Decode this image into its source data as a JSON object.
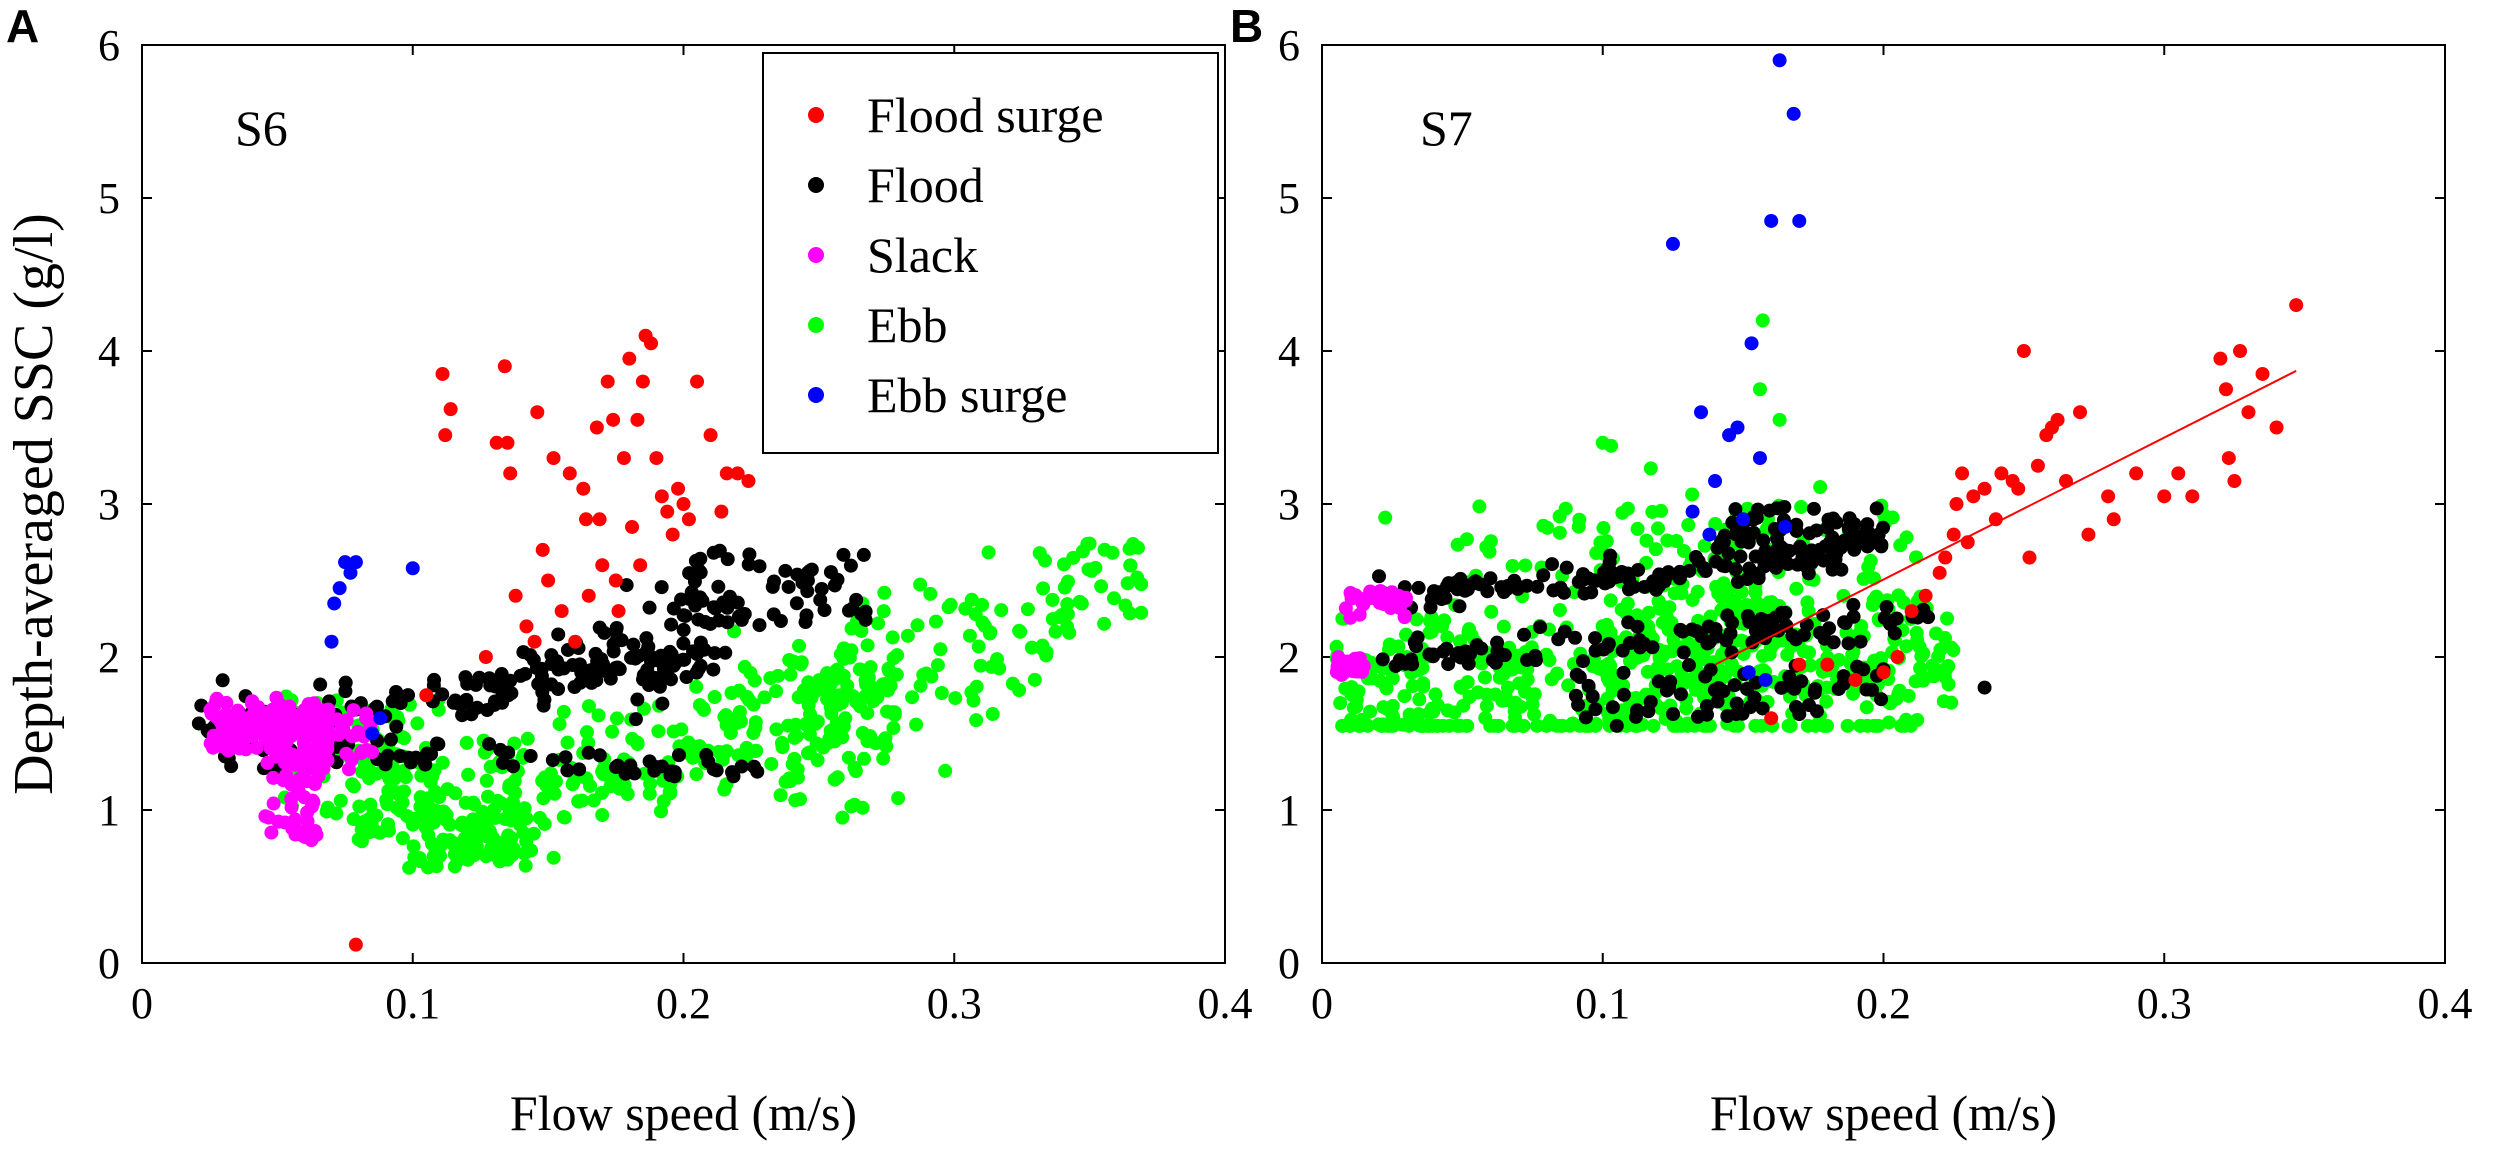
{
  "panel_letters": [
    "A",
    "B"
  ],
  "ylabel": "Depth-averaged SSC (g/l)",
  "xlabel": "Flow speed (m/s)",
  "legend": [
    {
      "label": "Flood surge",
      "color": "#ff0000"
    },
    {
      "label": "Flood",
      "color": "#000000"
    },
    {
      "label": "Slack",
      "color": "#ff00ff"
    },
    {
      "label": "Ebb",
      "color": "#00ff00"
    },
    {
      "label": "Ebb surge",
      "color": "#0000ff"
    }
  ],
  "chart_data": [
    {
      "type": "scatter",
      "panel": "A",
      "station": "S6",
      "xlabel": "Flow speed (m/s)",
      "ylabel": "Depth-averaged SSC (g/l)",
      "xlim": [
        0,
        0.4
      ],
      "ylim": [
        0,
        6
      ],
      "xticks": [
        "0",
        "0.1",
        "0.2",
        "0.3",
        "0.4"
      ],
      "yticks": [
        "0",
        "1",
        "2",
        "3",
        "4",
        "5",
        "6"
      ],
      "legend_position": "top-right",
      "series": [
        {
          "name": "Flood surge",
          "color": "#ff0000",
          "points": [
            [
              0.079,
              0.12
            ],
            [
              0.105,
              1.75
            ],
            [
              0.111,
              3.85
            ],
            [
              0.112,
              3.45
            ],
            [
              0.114,
              3.62
            ],
            [
              0.127,
              2.0
            ],
            [
              0.131,
              3.4
            ],
            [
              0.134,
              3.9
            ],
            [
              0.135,
              3.4
            ],
            [
              0.136,
              3.2
            ],
            [
              0.138,
              2.4
            ],
            [
              0.142,
              2.2
            ],
            [
              0.145,
              2.1
            ],
            [
              0.146,
              3.6
            ],
            [
              0.148,
              2.7
            ],
            [
              0.15,
              2.5
            ],
            [
              0.152,
              3.3
            ],
            [
              0.155,
              2.3
            ],
            [
              0.158,
              3.2
            ],
            [
              0.16,
              2.1
            ],
            [
              0.163,
              3.1
            ],
            [
              0.164,
              2.9
            ],
            [
              0.165,
              2.4
            ],
            [
              0.168,
              3.5
            ],
            [
              0.169,
              2.9
            ],
            [
              0.17,
              2.6
            ],
            [
              0.172,
              3.8
            ],
            [
              0.174,
              3.55
            ],
            [
              0.175,
              2.5
            ],
            [
              0.176,
              2.3
            ],
            [
              0.178,
              3.3
            ],
            [
              0.18,
              3.95
            ],
            [
              0.181,
              2.85
            ],
            [
              0.183,
              3.55
            ],
            [
              0.184,
              2.6
            ],
            [
              0.185,
              3.8
            ],
            [
              0.186,
              4.1
            ],
            [
              0.188,
              4.05
            ],
            [
              0.19,
              3.3
            ],
            [
              0.192,
              3.05
            ],
            [
              0.194,
              2.95
            ],
            [
              0.196,
              2.8
            ],
            [
              0.198,
              3.1
            ],
            [
              0.2,
              3.0
            ],
            [
              0.202,
              2.9
            ],
            [
              0.205,
              3.8
            ],
            [
              0.21,
              3.45
            ],
            [
              0.214,
              2.95
            ],
            [
              0.216,
              3.2
            ],
            [
              0.22,
              3.2
            ],
            [
              0.224,
              3.15
            ]
          ]
        },
        {
          "name": "Ebb surge",
          "color": "#0000ff",
          "points": [
            [
              0.07,
              2.1
            ],
            [
              0.071,
              2.35
            ],
            [
              0.073,
              2.45
            ],
            [
              0.075,
              2.62
            ],
            [
              0.077,
              2.55
            ],
            [
              0.079,
              2.62
            ],
            [
              0.1,
              2.58
            ],
            [
              0.085,
              1.5
            ],
            [
              0.088,
              1.6
            ]
          ]
        }
      ],
      "clusters": [
        {
          "name": "Ebb",
          "color": "#00ff00",
          "count": 620,
          "x_range": [
            0.05,
            0.37
          ],
          "y_range": [
            0.6,
            2.75
          ],
          "description_from_axes": "rising trend from ~0.7 at 0.11 m/s to ~2.5 at 0.37 m/s"
        },
        {
          "name": "Flood",
          "color": "#000000",
          "count": 320,
          "x_range": [
            0.02,
            0.27
          ],
          "y_range": [
            1.25,
            2.95
          ]
        },
        {
          "name": "Slack",
          "color": "#ff00ff",
          "count": 260,
          "x_range": [
            0.02,
            0.085
          ],
          "y_range": [
            0.8,
            1.95
          ]
        }
      ]
    },
    {
      "type": "scatter",
      "panel": "B",
      "station": "S7",
      "xlabel": "Flow speed (m/s)",
      "ylabel": "",
      "xlim": [
        0,
        0.4
      ],
      "ylim": [
        0,
        6
      ],
      "xticks": [
        "0",
        "0.1",
        "0.2",
        "0.3",
        "0.4"
      ],
      "yticks": [
        "0",
        "1",
        "2",
        "3",
        "4",
        "5",
        "6"
      ],
      "fit_line": {
        "color": "#ff0000",
        "from": [
          0.14,
          1.95
        ],
        "to": [
          0.347,
          3.87
        ]
      },
      "series": [
        {
          "name": "Flood surge",
          "color": "#ff0000",
          "points": [
            [
              0.16,
              1.6
            ],
            [
              0.17,
              1.95
            ],
            [
              0.18,
              1.95
            ],
            [
              0.19,
              1.85
            ],
            [
              0.2,
              1.9
            ],
            [
              0.205,
              2.0
            ],
            [
              0.21,
              2.3
            ],
            [
              0.215,
              2.4
            ],
            [
              0.22,
              2.55
            ],
            [
              0.222,
              2.65
            ],
            [
              0.225,
              2.8
            ],
            [
              0.226,
              3.0
            ],
            [
              0.228,
              3.2
            ],
            [
              0.23,
              2.75
            ],
            [
              0.232,
              3.05
            ],
            [
              0.236,
              3.1
            ],
            [
              0.24,
              2.9
            ],
            [
              0.242,
              3.2
            ],
            [
              0.246,
              3.15
            ],
            [
              0.248,
              3.1
            ],
            [
              0.25,
              4.0
            ],
            [
              0.252,
              2.65
            ],
            [
              0.255,
              3.25
            ],
            [
              0.258,
              3.45
            ],
            [
              0.26,
              3.5
            ],
            [
              0.262,
              3.55
            ],
            [
              0.265,
              3.15
            ],
            [
              0.27,
              3.6
            ],
            [
              0.273,
              2.8
            ],
            [
              0.28,
              3.05
            ],
            [
              0.282,
              2.9
            ],
            [
              0.29,
              3.2
            ],
            [
              0.3,
              3.05
            ],
            [
              0.305,
              3.2
            ],
            [
              0.31,
              3.05
            ],
            [
              0.32,
              3.95
            ],
            [
              0.322,
              3.75
            ],
            [
              0.323,
              3.3
            ],
            [
              0.325,
              3.15
            ],
            [
              0.327,
              4.0
            ],
            [
              0.33,
              3.6
            ],
            [
              0.335,
              3.85
            ],
            [
              0.34,
              3.5
            ],
            [
              0.347,
              4.3
            ]
          ]
        },
        {
          "name": "Ebb surge",
          "color": "#0000ff",
          "points": [
            [
              0.125,
              4.7
            ],
            [
              0.132,
              2.95
            ],
            [
              0.135,
              3.6
            ],
            [
              0.14,
              3.15
            ],
            [
              0.145,
              3.45
            ],
            [
              0.148,
              3.5
            ],
            [
              0.15,
              2.9
            ],
            [
              0.153,
              4.05
            ],
            [
              0.156,
              3.3
            ],
            [
              0.158,
              1.85
            ],
            [
              0.16,
              4.85
            ],
            [
              0.163,
              5.9
            ],
            [
              0.165,
              2.85
            ],
            [
              0.168,
              5.55
            ],
            [
              0.17,
              4.85
            ],
            [
              0.138,
              2.8
            ],
            [
              0.152,
              1.9
            ]
          ]
        }
      ],
      "clusters": [
        {
          "name": "Ebb",
          "color": "#00ff00",
          "count": 720,
          "x_range": [
            0.0,
            0.23
          ],
          "y_range": [
            1.55,
            4.2
          ]
        },
        {
          "name": "Flood",
          "color": "#000000",
          "count": 380,
          "x_range": [
            0.0,
            0.236
          ],
          "y_range": [
            1.55,
            3.05
          ]
        },
        {
          "name": "Slack",
          "color": "#ff00ff",
          "count": 60,
          "x_range": [
            0.0,
            0.03
          ],
          "y_range": [
            1.85,
            2.45
          ]
        }
      ]
    }
  ]
}
